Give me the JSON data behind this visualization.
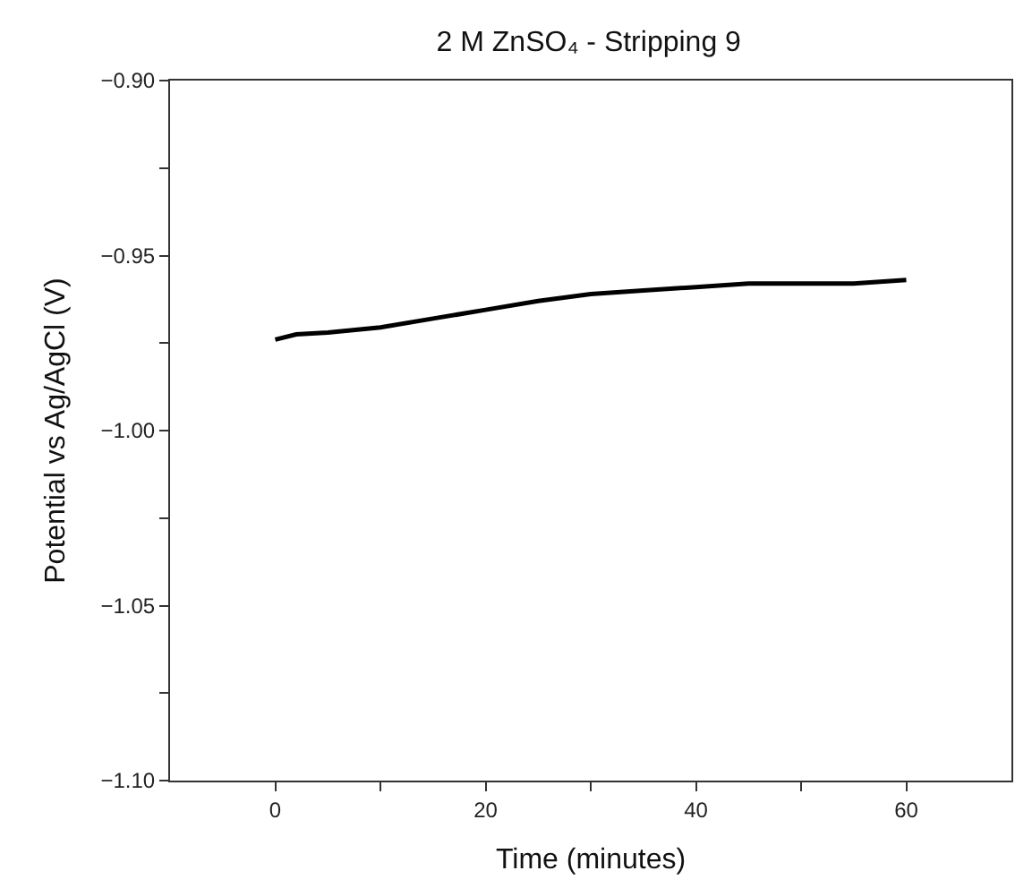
{
  "chart_data": {
    "type": "line",
    "title": "2 M ZnSO₄ - Stripping 9",
    "xlabel": "Time (minutes)",
    "ylabel": "Potential vs Ag/AgCl (V)",
    "x": [
      0,
      2,
      5,
      10,
      15,
      20,
      25,
      30,
      35,
      40,
      45,
      50,
      55,
      60
    ],
    "series": [
      {
        "color": "#000000",
        "values": [
          -0.974,
          -0.9725,
          -0.972,
          -0.9705,
          -0.968,
          -0.9655,
          -0.963,
          -0.961,
          -0.96,
          -0.959,
          -0.958,
          -0.958,
          -0.958,
          -0.957
        ]
      }
    ],
    "xlim": [
      -10,
      70
    ],
    "xticks": [
      0,
      {
        "value": 10,
        "label": null
      },
      20,
      {
        "value": 30,
        "label": null
      },
      40,
      {
        "value": 50,
        "label": null
      },
      60
    ],
    "ylim": [
      -1.1,
      -0.9
    ],
    "yticks": [
      {
        "value": -1.1,
        "label": "−1.10"
      },
      {
        "value": -1.075,
        "label": null
      },
      {
        "value": -1.05,
        "label": "−1.05"
      },
      {
        "value": -1.025,
        "label": null
      },
      {
        "value": -1.0,
        "label": "−1.00"
      },
      {
        "value": -0.975,
        "label": null
      },
      {
        "value": -0.95,
        "label": "−0.95"
      },
      {
        "value": -0.925,
        "label": null
      },
      {
        "value": -0.9,
        "label": "−0.90"
      }
    ],
    "marker": "none",
    "line_style": "solid"
  }
}
